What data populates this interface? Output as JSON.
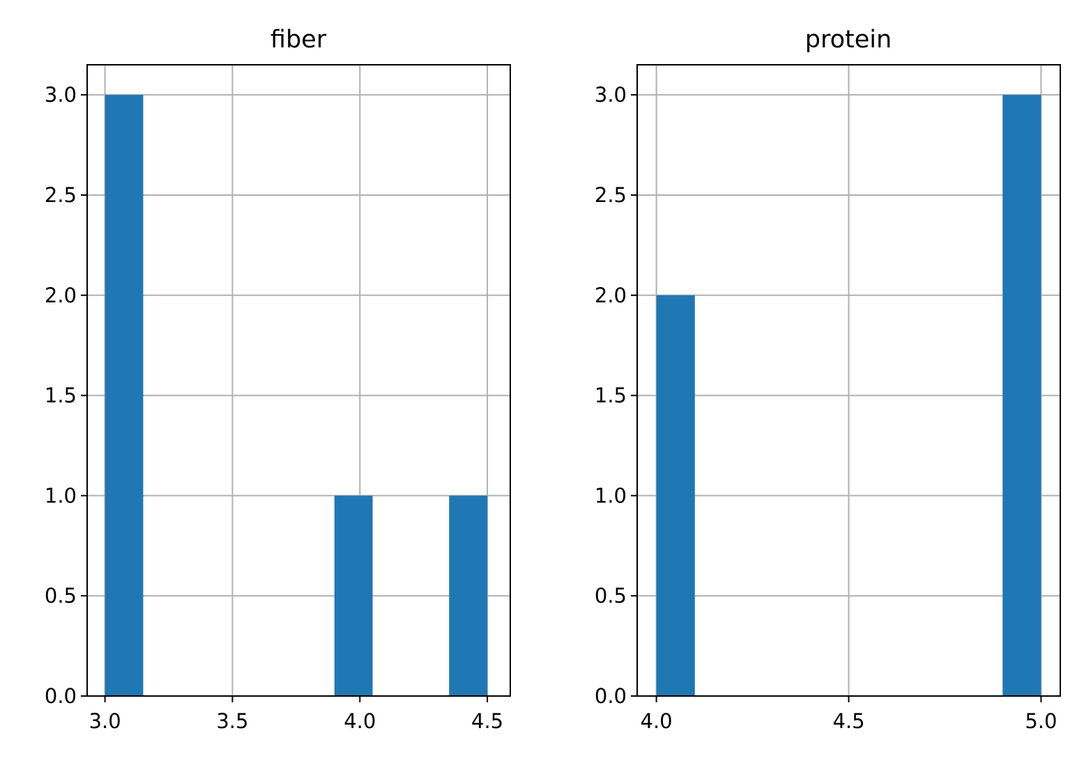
{
  "chart_data": [
    {
      "type": "bar",
      "title": "fiber",
      "xlabel": "",
      "ylabel": "",
      "xlim": [
        2.93,
        4.59
      ],
      "ylim": [
        0,
        3.15
      ],
      "xticks": [
        3.0,
        3.5,
        4.0,
        4.5
      ],
      "xtick_labels": [
        "3.0",
        "3.5",
        "4.0",
        "4.5"
      ],
      "yticks": [
        0,
        0.5,
        1.0,
        1.5,
        2.0,
        2.5,
        3.0
      ],
      "ytick_labels": [
        "0.0",
        "0.5",
        "1.0",
        "1.5",
        "2.0",
        "2.5",
        "3.0"
      ],
      "grid": true,
      "bars": [
        {
          "x0": 3.0,
          "x1": 3.15,
          "value": 3
        },
        {
          "x0": 3.9,
          "x1": 4.05,
          "value": 1
        },
        {
          "x0": 4.35,
          "x1": 4.5,
          "value": 1
        }
      ],
      "color": "#1f77b4"
    },
    {
      "type": "bar",
      "title": "protein",
      "xlabel": "",
      "ylabel": "",
      "xlim": [
        3.95,
        5.05
      ],
      "ylim": [
        0,
        3.15
      ],
      "xticks": [
        4.0,
        4.5,
        5.0
      ],
      "xtick_labels": [
        "4.0",
        "4.5",
        "5.0"
      ],
      "yticks": [
        0,
        0.5,
        1.0,
        1.5,
        2.0,
        2.5,
        3.0
      ],
      "ytick_labels": [
        "0.0",
        "0.5",
        "1.0",
        "1.5",
        "2.0",
        "2.5",
        "3.0"
      ],
      "grid": true,
      "bars": [
        {
          "x0": 4.0,
          "x1": 4.1,
          "value": 2
        },
        {
          "x0": 4.9,
          "x1": 5.0,
          "value": 3
        }
      ],
      "color": "#1f77b4"
    }
  ]
}
